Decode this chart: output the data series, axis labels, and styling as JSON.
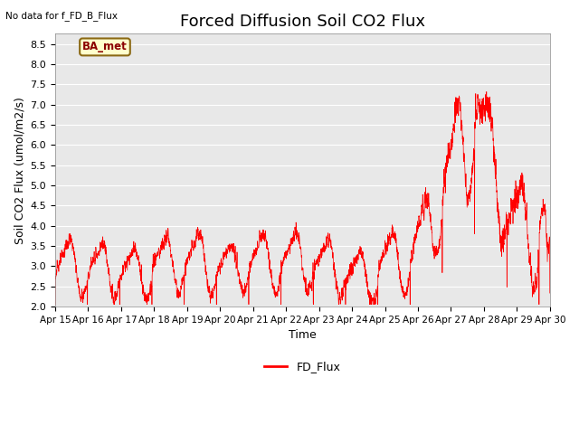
{
  "title": "Forced Diffusion Soil CO2 Flux",
  "xlabel": "Time",
  "ylabel_plain": "Soil CO2 Flux (umol/m2/s)",
  "no_data_label": "No data for f_FD_B_Flux",
  "legend_label": "FD_Flux",
  "site_label": "BA_met",
  "ylim": [
    2.0,
    8.75
  ],
  "yticks": [
    2.0,
    2.5,
    3.0,
    3.5,
    4.0,
    4.5,
    5.0,
    5.5,
    6.0,
    6.5,
    7.0,
    7.5,
    8.0,
    8.5
  ],
  "line_color": "red",
  "plot_bg_color": "#e8e8e8",
  "grid_color": "white",
  "site_box_facecolor": "#ffffcc",
  "site_box_edgecolor": "#8B6914",
  "site_label_color": "#8B0000",
  "title_fontsize": 13,
  "tick_fontsize": 8,
  "xlabel_fontsize": 9,
  "ylabel_fontsize": 9
}
